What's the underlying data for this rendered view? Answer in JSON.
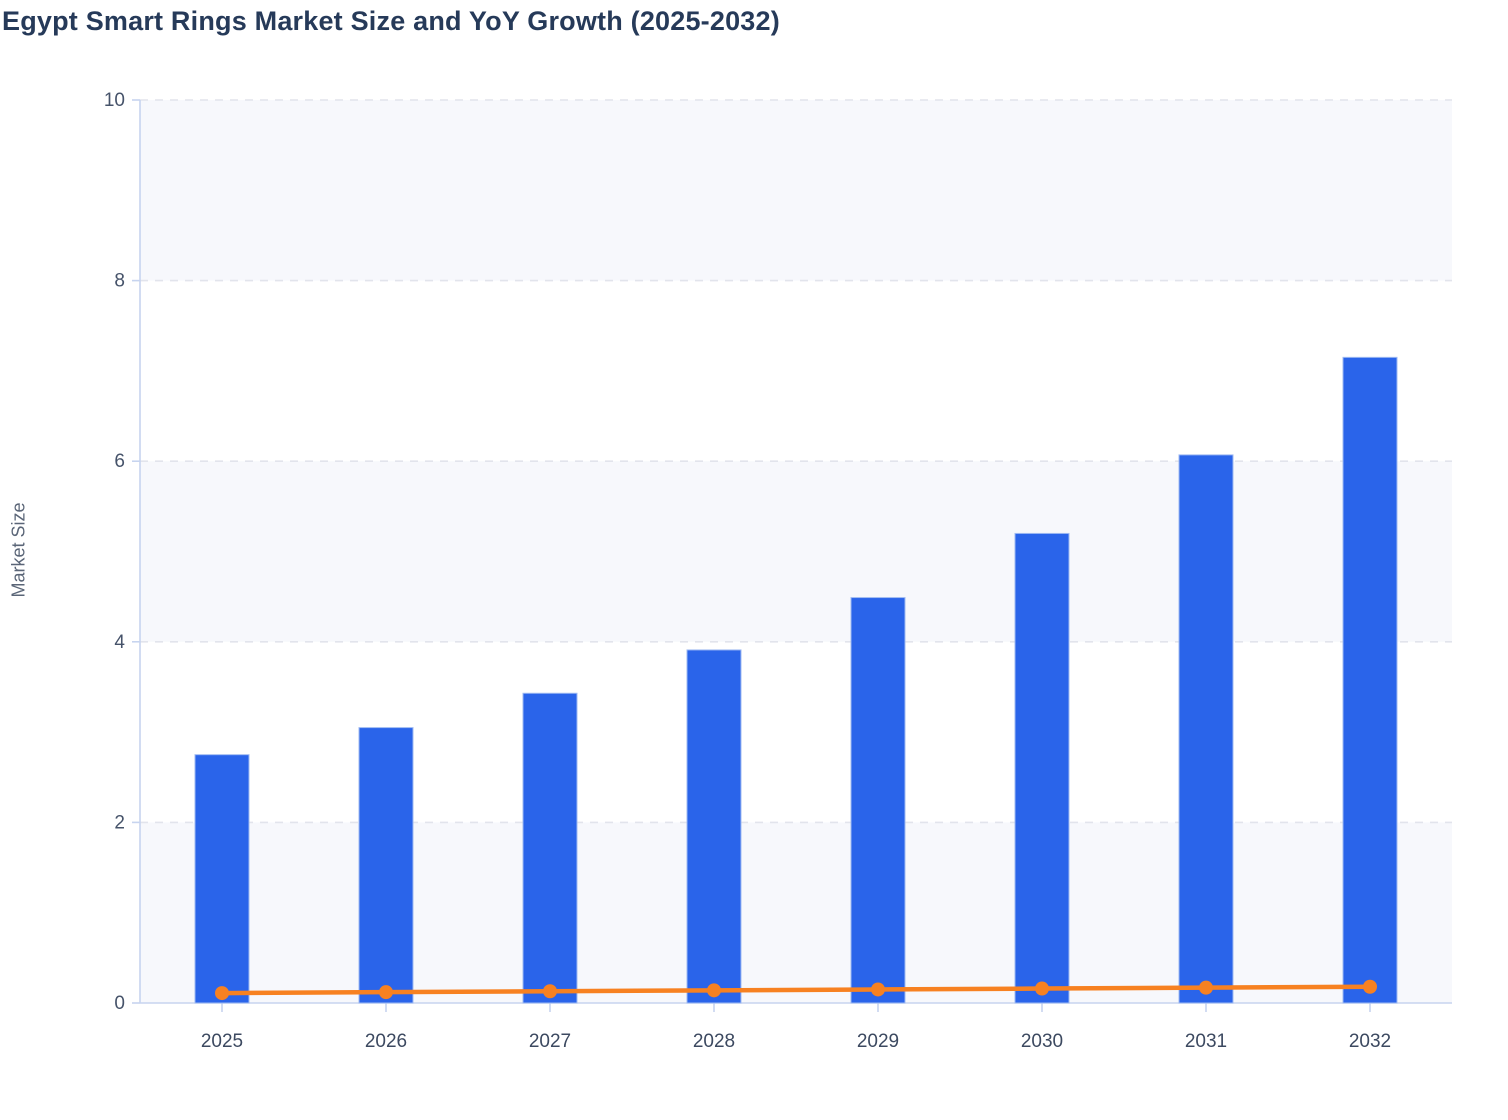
{
  "header": {
    "title": "Egypt Smart Rings Market Size and YoY Growth (2025-2032)"
  },
  "chart_data": {
    "type": "combo",
    "title": "Egypt Smart Rings Market Size and YoY Growth (2025-2032)",
    "xlabel": "",
    "ylabel": "Market Size",
    "categories": [
      "2025",
      "2026",
      "2027",
      "2028",
      "2029",
      "2030",
      "2031",
      "2032"
    ],
    "series": [
      {
        "name": "Market Size",
        "type": "bar",
        "color": "#2a64ea",
        "values": [
          2.75,
          3.05,
          3.43,
          3.91,
          4.49,
          5.2,
          6.07,
          7.15
        ]
      },
      {
        "name": "YoY Growth",
        "type": "line",
        "color": "#f78121",
        "values": [
          0.11,
          0.12,
          0.13,
          0.14,
          0.15,
          0.16,
          0.17,
          0.18
        ]
      }
    ],
    "ylim": [
      0,
      10
    ],
    "yticks": [
      0,
      2,
      4,
      6,
      8,
      10
    ],
    "grid": "horizontal-dashed",
    "legend_position": "none",
    "plot_bands": "alternating-light"
  },
  "style": {
    "background": "#ffffff",
    "bar_color": "#2a64ea",
    "bar_border_color": "#9fbaf2",
    "line_color": "#f78121",
    "band_fill": "#f7f8fc",
    "grid_color": "#e2e4ec",
    "axis_line_color": "#c7d4ef",
    "y_tick_label_color": "#46536a",
    "x_tick_label_color": "#3c4960",
    "title_color": "#263a59",
    "axis_title_color": "#5a6577"
  }
}
